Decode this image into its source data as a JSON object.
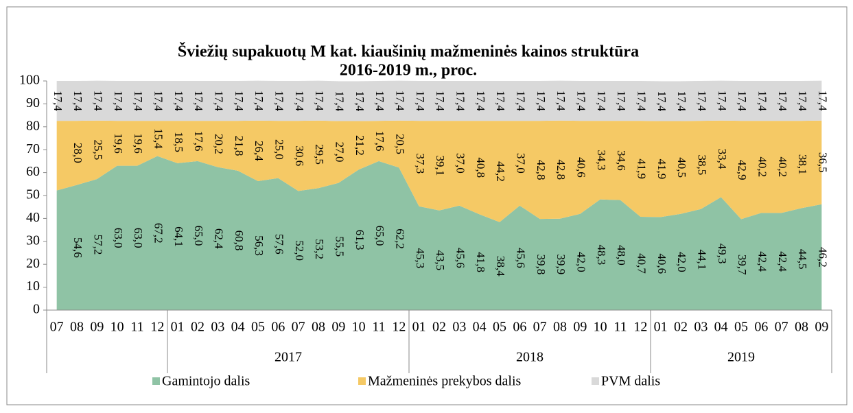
{
  "chart_data": {
    "type": "stacked_area",
    "title": "Šviežių supakuotų M kat. kiaušinių mažmeninės kainos struktūra",
    "subtitle": "2016-2019 m., proc.",
    "categories": [
      "07",
      "08",
      "09",
      "10",
      "11",
      "12",
      "01",
      "02",
      "03",
      "04",
      "05",
      "06",
      "07",
      "08",
      "09",
      "10",
      "11",
      "12",
      "01",
      "02",
      "03",
      "04",
      "05",
      "06",
      "07",
      "08",
      "09",
      "10",
      "11",
      "12",
      "01",
      "02",
      "03",
      "04",
      "05",
      "06",
      "07",
      "08",
      "09"
    ],
    "years": [
      null,
      "2017",
      "2018",
      "2019"
    ],
    "ylim": [
      0,
      100
    ],
    "yticks": [
      0,
      10,
      20,
      30,
      40,
      50,
      60,
      70,
      80,
      90,
      100
    ],
    "legend": "bottom",
    "series": [
      {
        "name": "Gamintojo dalis",
        "color": "#8fc3a5",
        "values": [
          52.2,
          54.6,
          57.2,
          63.0,
          63.0,
          67.2,
          64.1,
          65.0,
          62.4,
          60.8,
          56.3,
          57.6,
          52.0,
          53.2,
          55.5,
          61.3,
          65.0,
          62.2,
          45.3,
          43.5,
          45.6,
          41.8,
          38.4,
          45.6,
          39.8,
          39.9,
          42.0,
          48.3,
          48.0,
          40.7,
          40.6,
          42.0,
          44.1,
          49.3,
          39.7,
          42.4,
          42.4,
          44.5,
          46.2
        ],
        "value_labels": [
          null,
          "54,6",
          "57,2",
          "63,0",
          "63,0",
          "67,2",
          "64,1",
          "65,0",
          "62,4",
          "60,8",
          "56,3",
          "57,6",
          "52,0",
          "53,2",
          "55,5",
          "61,3",
          "65,0",
          "62,2",
          "45,3",
          "43,5",
          "45,6",
          "41,8",
          "38,4",
          "45,6",
          "39,8",
          "39,9",
          "42,0",
          "48,3",
          "48,0",
          "40,7",
          "40,6",
          "42,0",
          "44,1",
          "49,3",
          "39,7",
          "42,4",
          "42,4",
          "44,5",
          "46,2"
        ]
      },
      {
        "name": "Mažmeninės prekybos dalis",
        "color": "#f5c965",
        "values": [
          30.4,
          28.0,
          25.5,
          19.6,
          19.6,
          15.4,
          18.5,
          17.6,
          20.2,
          21.8,
          26.4,
          25.0,
          30.6,
          29.5,
          27.0,
          21.2,
          17.6,
          20.5,
          37.3,
          39.1,
          37.0,
          40.8,
          44.2,
          37.0,
          42.8,
          42.8,
          40.6,
          34.3,
          34.6,
          41.9,
          41.9,
          40.5,
          38.5,
          33.4,
          42.9,
          40.2,
          40.2,
          38.1,
          36.5
        ],
        "value_labels": [
          null,
          "28,0",
          "25,5",
          "19,6",
          "19,6",
          "15,4",
          "18,5",
          "17,6",
          "20,2",
          "21,8",
          "26,4",
          "25,0",
          "30,6",
          "29,5",
          "27,0",
          "21,2",
          "17,6",
          "20,5",
          "37,3",
          "39,1",
          "37,0",
          "40,8",
          "44,2",
          "37,0",
          "42,8",
          "42,8",
          "40,6",
          "34,3",
          "34,6",
          "41,9",
          "41,9",
          "40,5",
          "38,5",
          "33,4",
          "42,9",
          "40,2",
          "40,2",
          "38,1",
          "36,5"
        ]
      },
      {
        "name": "PVM dalis",
        "color": "#d9d9d9",
        "values": [
          17.4,
          17.4,
          17.4,
          17.4,
          17.4,
          17.4,
          17.4,
          17.4,
          17.4,
          17.4,
          17.4,
          17.4,
          17.4,
          17.4,
          17.4,
          17.4,
          17.4,
          17.4,
          17.4,
          17.4,
          17.4,
          17.4,
          17.4,
          17.4,
          17.4,
          17.4,
          17.4,
          17.4,
          17.4,
          17.4,
          17.4,
          17.4,
          17.4,
          17.4,
          17.4,
          17.4,
          17.4,
          17.4,
          17.4
        ],
        "value_labels": [
          "17,4",
          "17,4",
          "17,4",
          "17,4",
          "17,4",
          "17,4",
          "17,4",
          "17,4",
          "17,4",
          "17,4",
          "17,4",
          "17,4",
          "17,4",
          "17,4",
          "17,4",
          "17,4",
          "17,4",
          "17,4",
          "17,4",
          "17,4",
          "17,4",
          "17,4",
          "17,4",
          "17,4",
          "17,4",
          "17,4",
          "17,4",
          "17,4",
          "17,4",
          "17,4",
          "17,4",
          "17,4",
          "17,4",
          "17,4",
          "17,4",
          "17,4",
          "17,4",
          "17,4",
          "17,4"
        ]
      }
    ]
  }
}
